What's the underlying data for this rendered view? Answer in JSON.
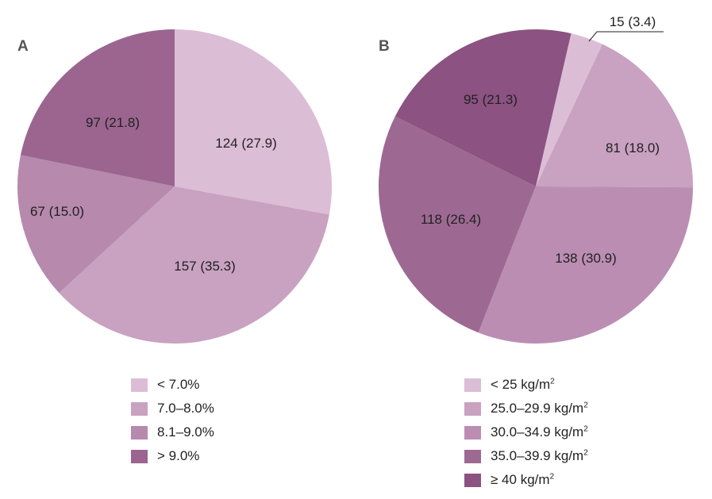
{
  "chart_data": [
    {
      "type": "pie",
      "panel": "A",
      "start_angle_deg": 0,
      "slices": [
        {
          "legend": "< 7.0%",
          "value": 124,
          "percent": 27.9,
          "label": "124 (27.9)",
          "color": "#dcbdd6"
        },
        {
          "legend": "7.0–8.0%",
          "value": 157,
          "percent": 35.3,
          "label": "157 (35.3)",
          "color": "#c9a1c1"
        },
        {
          "legend": "8.1–9.0%",
          "value": 67,
          "percent": 15.0,
          "label": "67 (15.0)",
          "color": "#b689ad"
        },
        {
          "legend": "> 9.0%",
          "value": 97,
          "percent": 21.8,
          "label": "97 (21.8)",
          "color": "#9b6590"
        }
      ]
    },
    {
      "type": "pie",
      "panel": "B",
      "start_angle_deg": 13,
      "legend_unit": "kg/m",
      "legend_sup": "2",
      "slices": [
        {
          "legend": "< 25",
          "value": 15,
          "percent": 3.4,
          "label": "15 (3.4)",
          "color": "#dcbdd6"
        },
        {
          "legend": "25.0–29.9",
          "value": 81,
          "percent": 18.0,
          "label": "81 (18.0)",
          "color": "#c9a1c1"
        },
        {
          "legend": "30.0–34.9",
          "value": 138,
          "percent": 30.9,
          "label": "138 (30.9)",
          "color": "#bb8db3"
        },
        {
          "legend": "35.0–39.9",
          "value": 118,
          "percent": 26.4,
          "label": "118 (26.4)",
          "color": "#9d6993"
        },
        {
          "legend": "≥ 40",
          "value": 95,
          "percent": 21.3,
          "label": "95 (21.3)",
          "color": "#8b5282"
        }
      ]
    }
  ]
}
